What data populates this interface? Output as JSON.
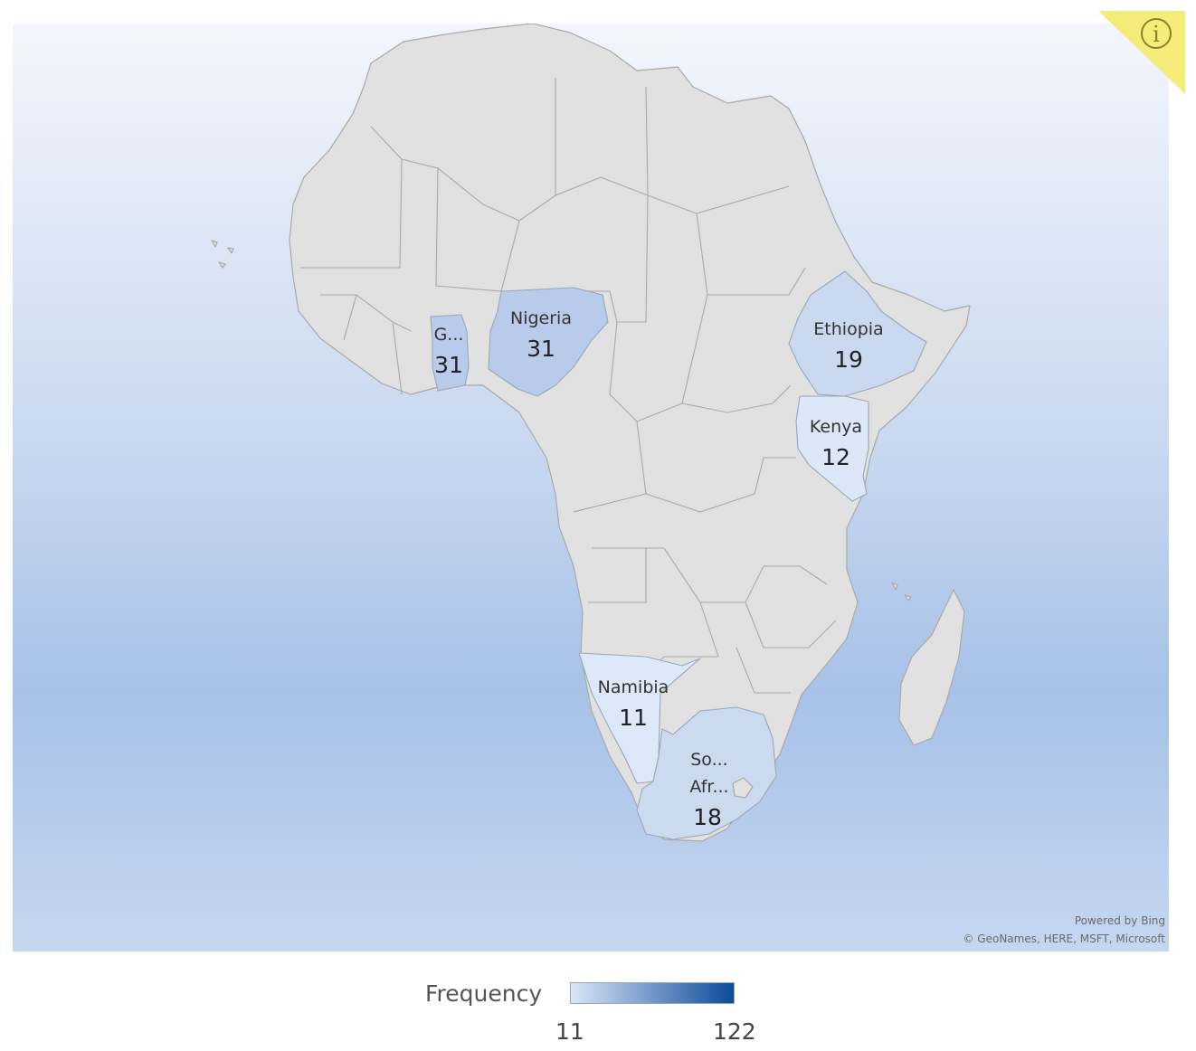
{
  "map": {
    "region": "Africa",
    "colors": {
      "no_data": "#e1e1e1",
      "scale_low": "#dbe6f7",
      "scale_high": "#0b4a9a"
    },
    "countries": [
      {
        "label": "G...",
        "value": 31,
        "color": "#b9cbea"
      },
      {
        "label": "Nigeria",
        "value": 31,
        "color": "#b9cbea"
      },
      {
        "label": "Ethiopia",
        "value": 19,
        "color": "#cad9f0"
      },
      {
        "label": "Kenya",
        "value": 12,
        "color": "#dce7f7"
      },
      {
        "label": "Namibia",
        "value": 11,
        "color": "#dde8f8"
      },
      {
        "label_lines": [
          "So...",
          "Afr..."
        ],
        "value": 18,
        "color": "#ccdaf0"
      }
    ]
  },
  "attribution": {
    "line1": "Powered by Bing",
    "line2": "© GeoNames, HERE, MSFT, Microsoft"
  },
  "info_badge": {
    "icon": "info-icon",
    "glyph": "i",
    "color": "#f6ec7a"
  },
  "legend": {
    "title": "Frequency",
    "min": "11",
    "max": "122"
  }
}
